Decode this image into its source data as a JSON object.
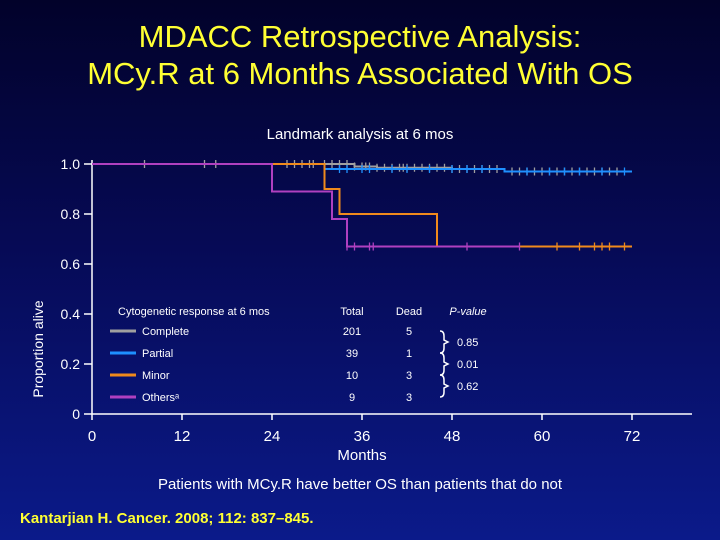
{
  "header": {
    "title_line1": "MDACC Retrospective Analysis:",
    "title_line2": "MCy.R at 6 Months Associated With OS"
  },
  "subtitle": "Landmark analysis at 6 mos",
  "footer_note": "Patients with MCy.R have better OS than patients that do not",
  "citation": "Kantarjian H. Cancer. 2008; 112: 837–845.",
  "colors": {
    "complete": "#a0a0a0",
    "partial": "#1e90ff",
    "minor": "#f08a1c",
    "others": "#b040c0",
    "title": "#ffff33"
  },
  "chart_data": {
    "type": "line",
    "subtype": "kaplan-meier",
    "title": "Landmark analysis at 6 mos",
    "xlabel": "Months",
    "ylabel": "Proportion alive",
    "xlim": [
      0,
      72
    ],
    "ylim": [
      0,
      1.0
    ],
    "x_ticks": [
      "0",
      "12",
      "24",
      "36",
      "48",
      "60",
      "72"
    ],
    "y_ticks": [
      "0",
      "0.2",
      "0.4",
      "0.6",
      "0.8",
      "1.0"
    ],
    "series": [
      {
        "name": "Complete",
        "color": "#a0a0a0",
        "steps": [
          [
            0,
            1.0
          ],
          [
            35,
            1.0
          ],
          [
            35,
            0.99
          ],
          [
            38,
            0.99
          ],
          [
            38,
            0.985
          ],
          [
            48,
            0.985
          ],
          [
            48,
            0.98
          ],
          [
            55,
            0.98
          ],
          [
            55,
            0.97
          ],
          [
            72,
            0.97
          ]
        ],
        "censor_x": [
          7,
          15,
          16.5,
          26,
          27,
          28,
          29,
          29.5,
          31,
          32,
          33,
          34,
          35,
          36,
          36.5,
          37,
          38,
          39,
          40,
          41,
          41.5,
          42,
          43,
          44,
          45,
          46,
          47,
          48,
          49,
          50,
          51,
          52,
          53,
          54,
          56,
          57,
          58,
          59,
          60,
          61,
          62,
          63,
          64,
          65,
          66,
          67,
          68,
          69,
          70
        ]
      },
      {
        "name": "Partial",
        "color": "#1e90ff",
        "steps": [
          [
            0,
            1.0
          ],
          [
            31,
            1.0
          ],
          [
            31,
            0.98
          ],
          [
            55,
            0.98
          ],
          [
            55,
            0.97
          ],
          [
            72,
            0.97
          ]
        ],
        "censor_x": [
          33,
          34,
          36,
          37,
          40,
          42,
          45,
          48,
          50,
          52,
          58,
          61,
          63,
          65,
          68,
          71
        ]
      },
      {
        "name": "Minor",
        "color": "#f08a1c",
        "steps": [
          [
            0,
            1.0
          ],
          [
            31,
            1.0
          ],
          [
            31,
            0.9
          ],
          [
            33,
            0.9
          ],
          [
            33,
            0.8
          ],
          [
            46,
            0.8
          ],
          [
            46,
            0.67
          ],
          [
            72,
            0.67
          ]
        ],
        "censor_x": [
          62,
          65,
          67,
          68,
          69,
          71
        ]
      },
      {
        "name": "Othersᵃ",
        "color": "#b040c0",
        "steps": [
          [
            0,
            1.0
          ],
          [
            24,
            1.0
          ],
          [
            24,
            0.89
          ],
          [
            32,
            0.89
          ],
          [
            32,
            0.78
          ],
          [
            34,
            0.78
          ],
          [
            34,
            0.67
          ],
          [
            57,
            0.67
          ]
        ],
        "censor_x": [
          34,
          35,
          37,
          37.5,
          50,
          57
        ]
      }
    ],
    "legend": {
      "header": "Cytogenetic response at 6 mos",
      "columns": [
        "Total",
        "Dead",
        "P-value"
      ],
      "rows": [
        {
          "label": "Complete",
          "total": "201",
          "dead": "5",
          "color": "#a0a0a0"
        },
        {
          "label": "Partial",
          "total": "39",
          "dead": "1",
          "color": "#1e90ff"
        },
        {
          "label": "Minor",
          "total": "10",
          "dead": "3",
          "color": "#f08a1c"
        },
        {
          "label": "Othersᵃ",
          "total": "9",
          "dead": "3",
          "color": "#b040c0"
        }
      ],
      "pvalues": [
        "0.85",
        "0.01",
        "0.62"
      ]
    }
  }
}
